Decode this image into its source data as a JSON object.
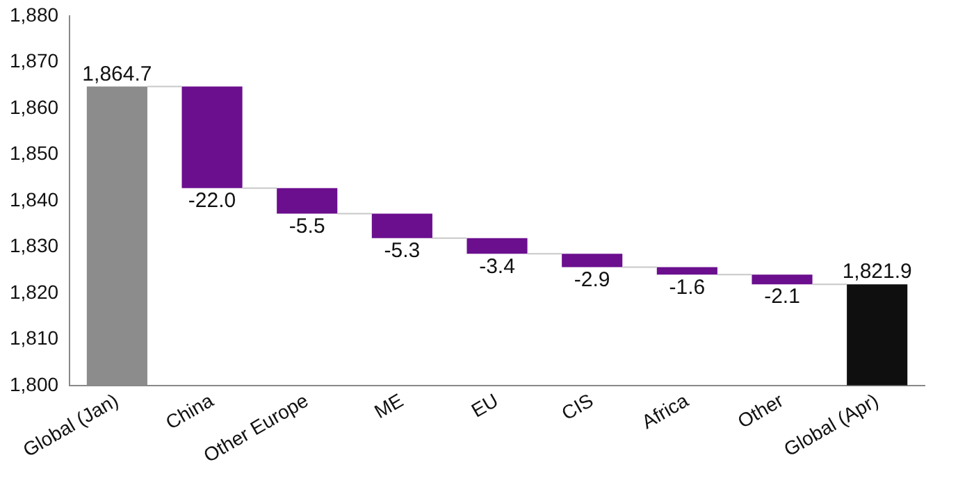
{
  "chart_data": {
    "type": "bar",
    "categories": [
      "Global (Jan)",
      "China",
      "Other Europe",
      "ME",
      "EU",
      "CIS",
      "Africa",
      "Other",
      "Global (Apr)"
    ],
    "values": [
      1864.7,
      -22.0,
      -5.5,
      -5.3,
      -3.4,
      -2.9,
      -1.6,
      -2.1,
      1821.9
    ],
    "base": [
      null,
      1864.7,
      1842.7,
      1837.2,
      1831.9,
      1828.5,
      1825.6,
      1824.0,
      null
    ],
    "colors": [
      "#8c8c8c",
      "#6b0f8e",
      "#6b0f8e",
      "#6b0f8e",
      "#6b0f8e",
      "#6b0f8e",
      "#6b0f8e",
      "#6b0f8e",
      "#0f0f0f"
    ],
    "value_labels": [
      "1,864.7",
      "-22.0",
      "-5.5",
      "-5.3",
      "-3.4",
      "-2.9",
      "-1.6",
      "-2.1",
      "1,821.9"
    ],
    "ylim": [
      1800,
      1880
    ],
    "yticks": [
      {
        "value": 1800,
        "label": "1,800"
      },
      {
        "value": 1810,
        "label": "1,810"
      },
      {
        "value": 1820,
        "label": "1,820"
      },
      {
        "value": 1830,
        "label": "1,830"
      },
      {
        "value": 1840,
        "label": "1,840"
      },
      {
        "value": 1850,
        "label": "1,850"
      },
      {
        "value": 1860,
        "label": "1,860"
      },
      {
        "value": 1870,
        "label": "1,870"
      },
      {
        "value": 1880,
        "label": "1,880"
      }
    ],
    "grid": false,
    "legend": false
  }
}
